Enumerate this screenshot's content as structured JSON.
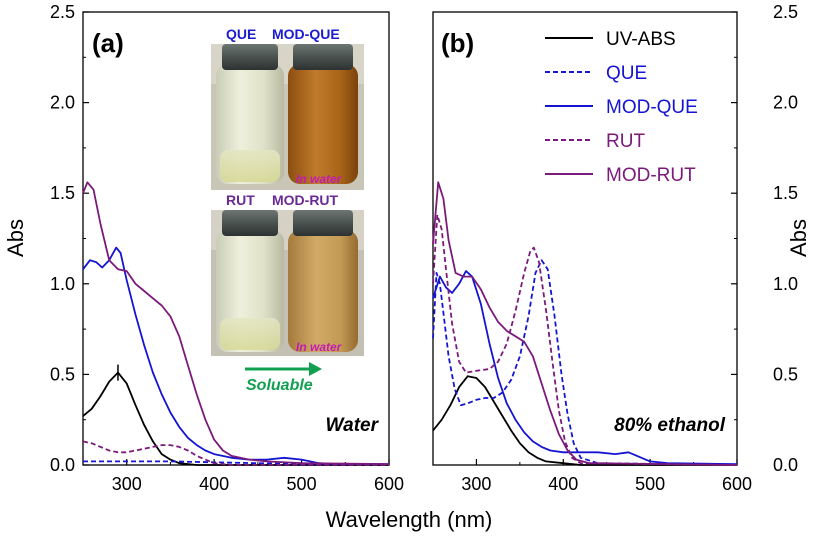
{
  "chart_data": [
    {
      "type": "line",
      "panel_label": "(a)",
      "solvent_label": "Water",
      "xlabel": "Wavelength (nm)",
      "ylabel": "Abs",
      "xlim": [
        250,
        600
      ],
      "ylim": [
        0,
        2.5
      ],
      "x_ticks": [
        "300",
        "400",
        "500",
        "600"
      ],
      "y_ticks": [
        "0.0",
        "0.5",
        "1.0",
        "1.5",
        "2.0",
        "2.5"
      ],
      "y_axis_side": "left",
      "series": [
        {
          "name": "UV-ABS",
          "color": "#000000",
          "dash": false,
          "points": [
            [
              250,
              0.27
            ],
            [
              260,
              0.31
            ],
            [
              270,
              0.38
            ],
            [
              280,
              0.46
            ],
            [
              290,
              0.51
            ],
            [
              300,
              0.45
            ],
            [
              310,
              0.33
            ],
            [
              320,
              0.22
            ],
            [
              330,
              0.13
            ],
            [
              340,
              0.06
            ],
            [
              350,
              0.03
            ],
            [
              360,
              0.01
            ],
            [
              380,
              0.0
            ],
            [
              600,
              0.0
            ]
          ]
        },
        {
          "name": "QUE",
          "color": "#1414d2",
          "dash": true,
          "points": [
            [
              250,
              0.02
            ],
            [
              300,
              0.02
            ],
            [
              350,
              0.02
            ],
            [
              400,
              0.015
            ],
            [
              450,
              0.01
            ],
            [
              500,
              0.005
            ],
            [
              600,
              0.005
            ]
          ]
        },
        {
          "name": "MOD-QUE",
          "color": "#1414d2",
          "dash": false,
          "points": [
            [
              250,
              1.08
            ],
            [
              258,
              1.13
            ],
            [
              265,
              1.12
            ],
            [
              272,
              1.09
            ],
            [
              280,
              1.13
            ],
            [
              288,
              1.2
            ],
            [
              293,
              1.17
            ],
            [
              300,
              1.02
            ],
            [
              310,
              0.83
            ],
            [
              320,
              0.66
            ],
            [
              330,
              0.51
            ],
            [
              340,
              0.39
            ],
            [
              350,
              0.29
            ],
            [
              360,
              0.21
            ],
            [
              370,
              0.15
            ],
            [
              380,
              0.11
            ],
            [
              390,
              0.08
            ],
            [
              400,
              0.06
            ],
            [
              420,
              0.04
            ],
            [
              440,
              0.03
            ],
            [
              460,
              0.03
            ],
            [
              480,
              0.04
            ],
            [
              500,
              0.03
            ],
            [
              520,
              0.01
            ],
            [
              540,
              0.005
            ],
            [
              600,
              0.005
            ]
          ]
        },
        {
          "name": "RUT",
          "color": "#7b1a7b",
          "dash": true,
          "points": [
            [
              250,
              0.13
            ],
            [
              260,
              0.12
            ],
            [
              270,
              0.1
            ],
            [
              280,
              0.08
            ],
            [
              290,
              0.07
            ],
            [
              300,
              0.07
            ],
            [
              310,
              0.08
            ],
            [
              320,
              0.09
            ],
            [
              330,
              0.1
            ],
            [
              340,
              0.11
            ],
            [
              350,
              0.11
            ],
            [
              360,
              0.1
            ],
            [
              370,
              0.08
            ],
            [
              380,
              0.05
            ],
            [
              390,
              0.03
            ],
            [
              400,
              0.01
            ],
            [
              420,
              0.0
            ],
            [
              600,
              0.0
            ]
          ]
        },
        {
          "name": "MOD-RUT",
          "color": "#7b1a7b",
          "dash": false,
          "points": [
            [
              250,
              1.5
            ],
            [
              255,
              1.56
            ],
            [
              262,
              1.52
            ],
            [
              270,
              1.33
            ],
            [
              280,
              1.13
            ],
            [
              290,
              1.08
            ],
            [
              300,
              1.07
            ],
            [
              310,
              1.0
            ],
            [
              320,
              0.96
            ],
            [
              330,
              0.92
            ],
            [
              340,
              0.88
            ],
            [
              350,
              0.82
            ],
            [
              360,
              0.71
            ],
            [
              370,
              0.55
            ],
            [
              380,
              0.39
            ],
            [
              390,
              0.25
            ],
            [
              400,
              0.14
            ],
            [
              410,
              0.08
            ],
            [
              420,
              0.05
            ],
            [
              440,
              0.03
            ],
            [
              460,
              0.02
            ],
            [
              500,
              0.01
            ],
            [
              600,
              0.005
            ]
          ]
        }
      ]
    },
    {
      "type": "line",
      "panel_label": "(b)",
      "solvent_label": "80% ethanol",
      "xlabel": "Wavelength (nm)",
      "ylabel": "Abs",
      "xlim": [
        250,
        600
      ],
      "ylim": [
        0,
        2.5
      ],
      "x_ticks": [
        "300",
        "400",
        "500",
        "600"
      ],
      "y_ticks": [
        "0.0",
        "0.5",
        "1.0",
        "1.5",
        "2.0",
        "2.5"
      ],
      "y_axis_side": "right",
      "legend": [
        "UV-ABS",
        "QUE",
        "MOD-QUE",
        "RUT",
        "MOD-RUT"
      ],
      "series": [
        {
          "name": "UV-ABS",
          "color": "#000000",
          "dash": false,
          "points": [
            [
              250,
              0.19
            ],
            [
              260,
              0.25
            ],
            [
              270,
              0.33
            ],
            [
              280,
              0.43
            ],
            [
              290,
              0.49
            ],
            [
              300,
              0.48
            ],
            [
              310,
              0.43
            ],
            [
              320,
              0.35
            ],
            [
              330,
              0.27
            ],
            [
              340,
              0.19
            ],
            [
              350,
              0.12
            ],
            [
              360,
              0.07
            ],
            [
              370,
              0.04
            ],
            [
              380,
              0.02
            ],
            [
              400,
              0.01
            ],
            [
              420,
              0.0
            ],
            [
              600,
              0.0
            ]
          ]
        },
        {
          "name": "QUE",
          "color": "#1414d2",
          "dash": true,
          "points": [
            [
              250,
              0.7
            ],
            [
              254,
              1.06
            ],
            [
              258,
              1.0
            ],
            [
              262,
              0.84
            ],
            [
              268,
              0.6
            ],
            [
              275,
              0.42
            ],
            [
              282,
              0.33
            ],
            [
              290,
              0.34
            ],
            [
              300,
              0.36
            ],
            [
              310,
              0.37
            ],
            [
              320,
              0.37
            ],
            [
              330,
              0.4
            ],
            [
              340,
              0.47
            ],
            [
              350,
              0.6
            ],
            [
              360,
              0.82
            ],
            [
              368,
              1.06
            ],
            [
              375,
              1.13
            ],
            [
              382,
              1.08
            ],
            [
              390,
              0.82
            ],
            [
              398,
              0.5
            ],
            [
              405,
              0.28
            ],
            [
              412,
              0.12
            ],
            [
              420,
              0.04
            ],
            [
              440,
              0.01
            ],
            [
              600,
              0.0
            ]
          ]
        },
        {
          "name": "MOD-QUE",
          "color": "#1414d2",
          "dash": false,
          "points": [
            [
              250,
              0.92
            ],
            [
              258,
              1.04
            ],
            [
              265,
              0.98
            ],
            [
              272,
              0.95
            ],
            [
              280,
              1.0
            ],
            [
              288,
              1.07
            ],
            [
              295,
              1.04
            ],
            [
              305,
              0.89
            ],
            [
              315,
              0.67
            ],
            [
              325,
              0.48
            ],
            [
              335,
              0.34
            ],
            [
              345,
              0.25
            ],
            [
              355,
              0.18
            ],
            [
              365,
              0.13
            ],
            [
              375,
              0.1
            ],
            [
              385,
              0.08
            ],
            [
              400,
              0.07
            ],
            [
              420,
              0.07
            ],
            [
              440,
              0.07
            ],
            [
              460,
              0.06
            ],
            [
              475,
              0.07
            ],
            [
              485,
              0.05
            ],
            [
              500,
              0.02
            ],
            [
              520,
              0.01
            ],
            [
              600,
              0.005
            ]
          ]
        },
        {
          "name": "RUT",
          "color": "#7b1a7b",
          "dash": true,
          "points": [
            [
              250,
              1.0
            ],
            [
              255,
              1.38
            ],
            [
              260,
              1.3
            ],
            [
              265,
              1.08
            ],
            [
              272,
              0.78
            ],
            [
              280,
              0.57
            ],
            [
              288,
              0.51
            ],
            [
              300,
              0.52
            ],
            [
              315,
              0.53
            ],
            [
              325,
              0.57
            ],
            [
              335,
              0.67
            ],
            [
              345,
              0.85
            ],
            [
              355,
              1.06
            ],
            [
              362,
              1.18
            ],
            [
              366,
              1.2
            ],
            [
              372,
              1.12
            ],
            [
              380,
              0.86
            ],
            [
              388,
              0.55
            ],
            [
              395,
              0.3
            ],
            [
              402,
              0.13
            ],
            [
              410,
              0.04
            ],
            [
              420,
              0.01
            ],
            [
              600,
              0.0
            ]
          ]
        },
        {
          "name": "MOD-RUT",
          "color": "#7b1a7b",
          "dash": false,
          "points": [
            [
              250,
              1.22
            ],
            [
              256,
              1.56
            ],
            [
              262,
              1.47
            ],
            [
              268,
              1.24
            ],
            [
              276,
              1.06
            ],
            [
              285,
              1.04
            ],
            [
              295,
              1.04
            ],
            [
              305,
              0.97
            ],
            [
              315,
              0.87
            ],
            [
              325,
              0.79
            ],
            [
              335,
              0.74
            ],
            [
              345,
              0.71
            ],
            [
              355,
              0.68
            ],
            [
              365,
              0.6
            ],
            [
              375,
              0.45
            ],
            [
              385,
              0.3
            ],
            [
              395,
              0.17
            ],
            [
              405,
              0.08
            ],
            [
              415,
              0.03
            ],
            [
              430,
              0.01
            ],
            [
              600,
              0.0
            ]
          ]
        }
      ]
    }
  ],
  "inset": {
    "top": {
      "label_left": "QUE",
      "label_right": "MOD-QUE",
      "note": "In water",
      "label_color": "#1b1bd0"
    },
    "bottom": {
      "label_left": "RUT",
      "label_right": "MOD-RUT",
      "note": "In water",
      "label_color": "#6a2a92"
    },
    "note_color": "#c41ab4",
    "arrow_label": "Soluable",
    "arrow_color": "#10a050"
  }
}
